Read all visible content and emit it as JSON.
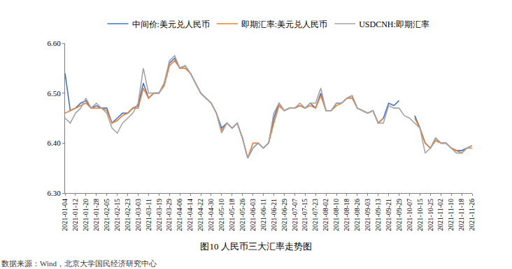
{
  "chart_data": {
    "type": "line",
    "title": "图10 人民币三大汇率走势图",
    "source": "数据来源：Wind，北京大学国民经济研究中心",
    "categories": [
      "2021-01-04",
      null,
      "2021-01-12",
      null,
      "2021-01-20",
      null,
      "2021-01-28",
      null,
      "2021-02-05",
      null,
      "2021-02-15",
      null,
      "2021-02-23",
      null,
      "2021-03-03",
      null,
      "2021-03-11",
      null,
      "2021-03-19",
      null,
      "2021-03-29",
      null,
      "2021-04-06",
      null,
      "2021-04-14",
      null,
      "2021-04-22",
      null,
      "2021-04-30",
      null,
      "2021-05-10",
      null,
      "2021-05-18",
      null,
      "2021-05-26",
      null,
      "2021-06-03",
      null,
      "2021-06-11",
      null,
      "2021-06-21",
      null,
      "2021-06-29",
      null,
      "2021-07-07",
      null,
      "2021-07-15",
      null,
      "2021-07-23",
      null,
      "2021-08-02",
      null,
      "2021-08-10",
      null,
      "2021-08-18",
      null,
      "2021-08-26",
      null,
      "2021-09-03",
      null,
      "2021-09-13",
      null,
      "2021-09-21",
      null,
      "2021-09-29",
      null,
      "2021-10-07",
      null,
      "2021-10-15",
      null,
      "2021-10-25",
      null,
      "2021-11-02",
      null,
      "2021-11-10",
      null,
      "2021-11-18",
      null,
      "2021-11-26"
    ],
    "series": [
      {
        "name": "中间价:美元兑人民币",
        "color": "#4472c4",
        "line_style": "solid",
        "values": [
          6.54,
          6.465,
          6.47,
          6.48,
          6.485,
          6.47,
          6.475,
          6.47,
          6.47,
          6.44,
          6.45,
          6.46,
          6.46,
          6.47,
          6.475,
          6.52,
          6.49,
          6.5,
          6.5,
          6.52,
          6.56,
          6.57,
          6.55,
          6.555,
          6.54,
          6.52,
          6.5,
          6.49,
          6.48,
          6.46,
          6.43,
          6.44,
          6.43,
          6.44,
          6.41,
          6.37,
          6.39,
          6.4,
          6.39,
          6.4,
          6.45,
          6.48,
          6.465,
          6.47,
          6.47,
          6.475,
          6.47,
          6.48,
          6.47,
          6.5,
          6.465,
          6.465,
          6.48,
          6.48,
          6.49,
          6.495,
          6.47,
          6.465,
          6.46,
          6.465,
          6.44,
          6.45,
          6.48,
          6.475,
          6.485,
          null,
          null,
          6.455,
          6.43,
          6.4,
          6.39,
          6.41,
          6.4,
          6.4,
          6.39,
          6.385,
          6.385,
          6.39,
          6.395
        ]
      },
      {
        "name": "即期汇率:美元兑人民币",
        "color": "#ed7d31",
        "line_style": "solid",
        "values": [
          6.46,
          6.465,
          6.47,
          6.475,
          6.48,
          6.47,
          6.47,
          6.47,
          6.465,
          6.44,
          6.445,
          6.455,
          6.46,
          6.47,
          6.47,
          6.51,
          6.49,
          6.5,
          6.5,
          6.515,
          6.555,
          6.565,
          6.55,
          6.55,
          6.54,
          6.52,
          6.5,
          6.49,
          6.48,
          6.46,
          6.425,
          6.44,
          6.43,
          6.44,
          6.41,
          6.37,
          6.4,
          6.4,
          6.39,
          6.4,
          6.44,
          6.475,
          6.465,
          6.47,
          6.47,
          6.475,
          6.47,
          6.475,
          6.47,
          6.495,
          6.465,
          6.465,
          6.475,
          6.48,
          6.49,
          6.49,
          6.47,
          6.465,
          6.46,
          6.465,
          6.44,
          6.45,
          null,
          null,
          null,
          null,
          null,
          6.45,
          6.43,
          6.4,
          6.39,
          6.405,
          6.4,
          6.4,
          6.39,
          6.385,
          6.38,
          6.39,
          6.39
        ]
      },
      {
        "name": "USDCNH:即期汇率",
        "color": "#a5a5a5",
        "line_style": "solid",
        "values": [
          6.45,
          6.44,
          6.46,
          6.47,
          6.49,
          6.47,
          6.48,
          6.47,
          6.46,
          6.43,
          6.42,
          6.44,
          6.45,
          6.46,
          6.48,
          6.55,
          6.5,
          6.5,
          6.5,
          6.52,
          6.565,
          6.575,
          6.55,
          6.555,
          6.54,
          6.52,
          6.5,
          6.49,
          6.48,
          6.46,
          6.42,
          6.44,
          6.43,
          6.44,
          6.41,
          6.37,
          6.39,
          6.4,
          6.39,
          6.4,
          6.46,
          6.48,
          6.465,
          6.47,
          6.47,
          6.48,
          6.47,
          6.48,
          6.48,
          6.51,
          6.465,
          6.465,
          6.48,
          6.48,
          6.49,
          6.495,
          6.47,
          6.465,
          6.46,
          6.465,
          6.44,
          6.44,
          6.475,
          6.47,
          6.47,
          6.455,
          6.45,
          6.44,
          6.43,
          6.38,
          6.39,
          6.41,
          6.4,
          6.4,
          6.39,
          6.38,
          6.38,
          6.39,
          6.395
        ]
      }
    ],
    "ylim": [
      6.3,
      6.6
    ],
    "yticks": [
      {
        "value": 6.3,
        "label": "6.30"
      },
      {
        "value": 6.4,
        "label": "6.40"
      },
      {
        "value": 6.5,
        "label": "6.50"
      },
      {
        "value": 6.6,
        "label": "6.60"
      }
    ],
    "grid": false,
    "legend": "top"
  }
}
